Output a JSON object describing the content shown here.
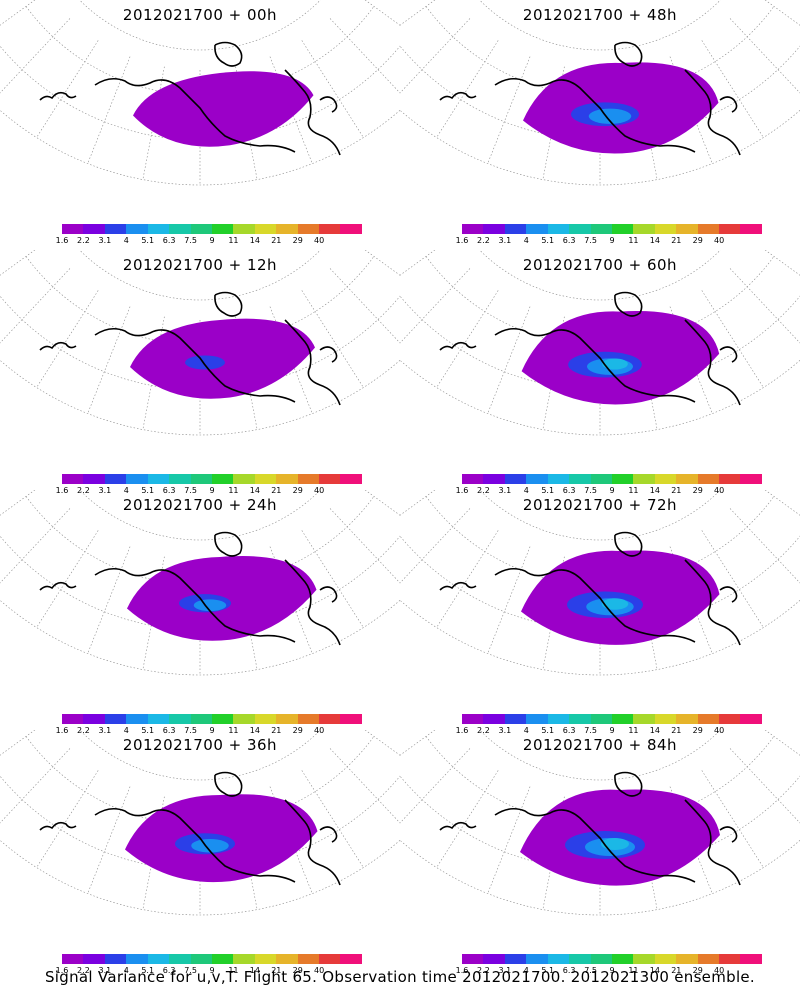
{
  "panels": [
    {
      "title": "2012021700 + 00h",
      "spread": 0.35,
      "seed": 1
    },
    {
      "title": "2012021700 + 48h",
      "spread": 0.85,
      "seed": 2
    },
    {
      "title": "2012021700 + 12h",
      "spread": 0.5,
      "seed": 3
    },
    {
      "title": "2012021700 + 60h",
      "spread": 0.92,
      "seed": 4
    },
    {
      "title": "2012021700 + 24h",
      "spread": 0.65,
      "seed": 5
    },
    {
      "title": "2012021700 + 72h",
      "spread": 0.95,
      "seed": 6
    },
    {
      "title": "2012021700 + 36h",
      "spread": 0.75,
      "seed": 7
    },
    {
      "title": "2012021700 + 84h",
      "spread": 1.0,
      "seed": 8
    }
  ],
  "colorbar": {
    "labels": [
      "1.6",
      "2.2",
      "3.1",
      "4",
      "5.1",
      "6.3",
      "7.5",
      "9",
      "11",
      "14",
      "21",
      "29",
      "40"
    ],
    "colors": [
      "#9b00c8",
      "#7a00e0",
      "#2b3fe8",
      "#1a8ff0",
      "#1bb8e6",
      "#17c8a8",
      "#1ec87a",
      "#22d02a",
      "#a6d82a",
      "#d8d82a",
      "#e6b42a",
      "#e67a2a",
      "#e63a3a",
      "#f0107a"
    ]
  },
  "footer": "Signal Variance for u,v,T. Flight 65. Observation time 2012021700. 2012021300 ensemble."
}
